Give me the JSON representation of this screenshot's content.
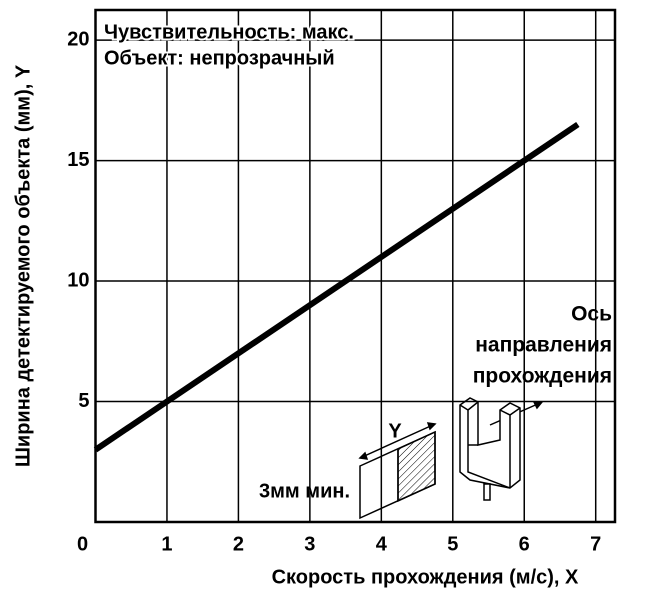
{
  "chart_data": {
    "type": "line",
    "x_label": "Скорость прохождения (м/с), X",
    "y_label": "Ширина детектируемого объекта (мм), Y",
    "series": [
      {
        "color": "#000000",
        "x": [
          0,
          6.75
        ],
        "values": [
          3,
          16.5
        ]
      }
    ],
    "xlim": [
      0,
      7.27
    ],
    "ylim": [
      0,
      21.25
    ],
    "xticks": [
      0,
      1,
      2,
      3,
      4,
      5,
      6,
      7
    ],
    "yticks": [
      5,
      10,
      15,
      20
    ],
    "grid": true,
    "annotations": [
      "Чувствительность: макс.",
      "Объект: непрозрачный",
      "Ось",
      "направления",
      "прохождения",
      "Y",
      "3мм мин."
    ]
  }
}
